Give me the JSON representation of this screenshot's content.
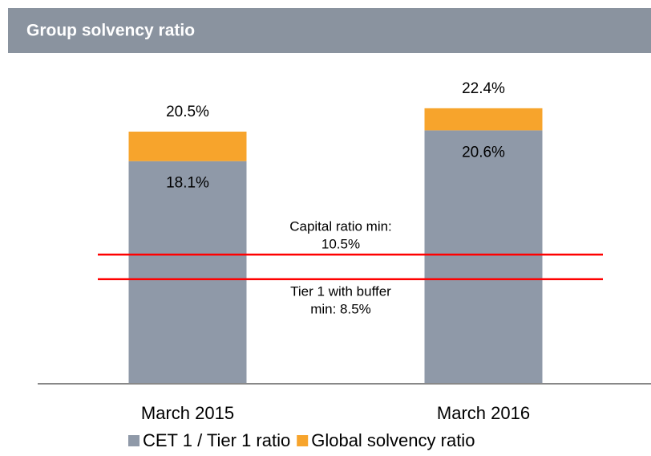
{
  "chart_data": {
    "type": "stacked_bar",
    "title": "Group solvency ratio",
    "categories": [
      "March 2015",
      "March 2016"
    ],
    "series": [
      {
        "name": "CET 1 / Tier 1 ratio",
        "color": "#8f99a8",
        "values": [
          18.1,
          20.6
        ],
        "value_labels": [
          "18.1%",
          "20.6%"
        ]
      },
      {
        "name": "Global solvency ratio",
        "color": "#f7a42c",
        "values": [
          2.4,
          1.8
        ]
      }
    ],
    "totals": [
      20.5,
      22.4
    ],
    "total_labels": [
      "20.5%",
      "22.4%"
    ],
    "reference_lines": [
      {
        "value": 10.5,
        "color": "#ff0000",
        "label_lines": [
          "Capital ratio min:",
          "10.5%"
        ]
      },
      {
        "value": 8.5,
        "color": "#ff0000",
        "label_lines": [
          "Tier 1 with buffer",
          "min: 8.5%"
        ]
      }
    ],
    "ylim": [
      0,
      25
    ]
  }
}
